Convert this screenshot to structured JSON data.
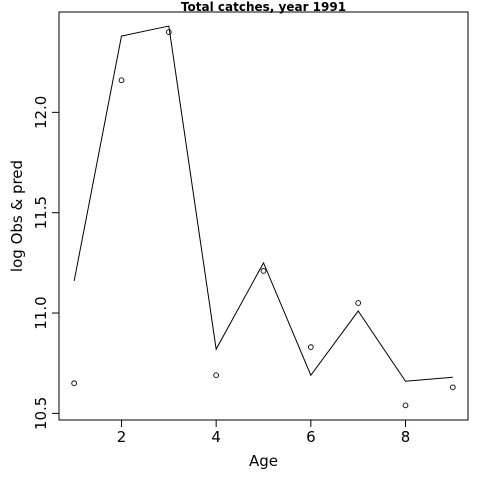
{
  "chart_data": {
    "type": "line",
    "title": "Total catches, year 1991",
    "xlabel": "Age",
    "ylabel": "log Obs & pred",
    "x": [
      1,
      2,
      3,
      4,
      5,
      6,
      7,
      8,
      9
    ],
    "xlim": [
      0.68,
      9.32
    ],
    "ylim": [
      10.467,
      12.5
    ],
    "xticks": [
      2,
      4,
      6,
      8
    ],
    "xtick_labels": [
      "2",
      "4",
      "6",
      "8"
    ],
    "yticks": [
      10.5,
      11.0,
      11.5,
      12.0
    ],
    "ytick_labels": [
      "10.5",
      "11.0",
      "11.5",
      "12.0"
    ],
    "series": [
      {
        "values": [
          10.65,
          12.16,
          12.4,
          10.69,
          11.21,
          10.83,
          11.05,
          10.54,
          10.63
        ],
        "style": "points"
      },
      {
        "values": [
          11.16,
          12.38,
          12.43,
          10.82,
          11.25,
          10.69,
          11.01,
          10.66,
          10.68
        ],
        "style": "line"
      }
    ],
    "grid": false,
    "line_color": "#000000"
  }
}
